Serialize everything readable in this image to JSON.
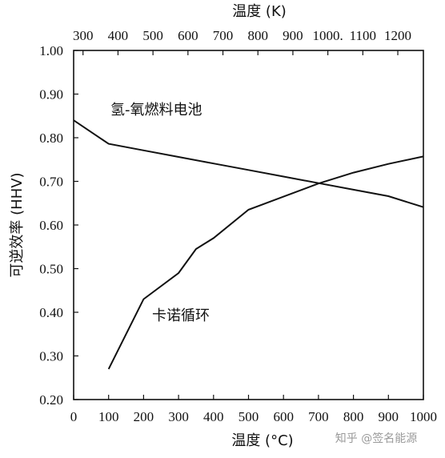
{
  "chart_data": {
    "type": "line",
    "xlabel": "温度 (°C)",
    "x2label": "温度 (K)",
    "ylabel": "可逆效率 (HHV)",
    "xlim": [
      0,
      1000
    ],
    "ylim": [
      0.2,
      1.0
    ],
    "x_ticks": [
      "0",
      "100",
      "200",
      "300",
      "400",
      "500",
      "600",
      "700",
      "800",
      "900",
      "1000"
    ],
    "x_tick_values": [
      0,
      100,
      200,
      300,
      400,
      500,
      600,
      700,
      800,
      900,
      1000
    ],
    "y_ticks": [
      "0.20",
      "0.30",
      "0.40",
      "0.50",
      "0.60",
      "0.70",
      "0.80",
      "0.90",
      "1.00"
    ],
    "y_tick_values": [
      0.2,
      0.3,
      0.4,
      0.5,
      0.6,
      0.7,
      0.8,
      0.9,
      1.0
    ],
    "x2_ticks": [
      "300",
      "400",
      "500",
      "600",
      "700",
      "800",
      "900",
      "1000",
      "1100",
      "1200"
    ],
    "x2_tick_values_K": [
      300,
      400,
      500,
      600,
      700,
      800,
      900,
      1000,
      1100,
      1200
    ],
    "x2_tick_display": [
      "300",
      "400",
      "500",
      "600",
      "700",
      "800",
      "900",
      "1000.",
      "1100",
      "1200"
    ],
    "grid": false,
    "series": [
      {
        "name": "氢-氧燃料电池",
        "x": [
          0,
          100,
          200,
          300,
          400,
          500,
          600,
          700,
          800,
          900,
          1000
        ],
        "values": [
          0.84,
          0.786,
          0.771,
          0.756,
          0.741,
          0.726,
          0.711,
          0.696,
          0.681,
          0.666,
          0.641
        ]
      },
      {
        "name": "卡诺循环",
        "x": [
          100,
          200,
          300,
          350,
          400,
          500,
          600,
          700,
          800,
          900,
          1000
        ],
        "values": [
          0.27,
          0.43,
          0.49,
          0.545,
          0.57,
          0.635,
          0.665,
          0.695,
          0.72,
          0.74,
          0.757
        ]
      }
    ]
  },
  "watermark": "知乎 @签名能源"
}
